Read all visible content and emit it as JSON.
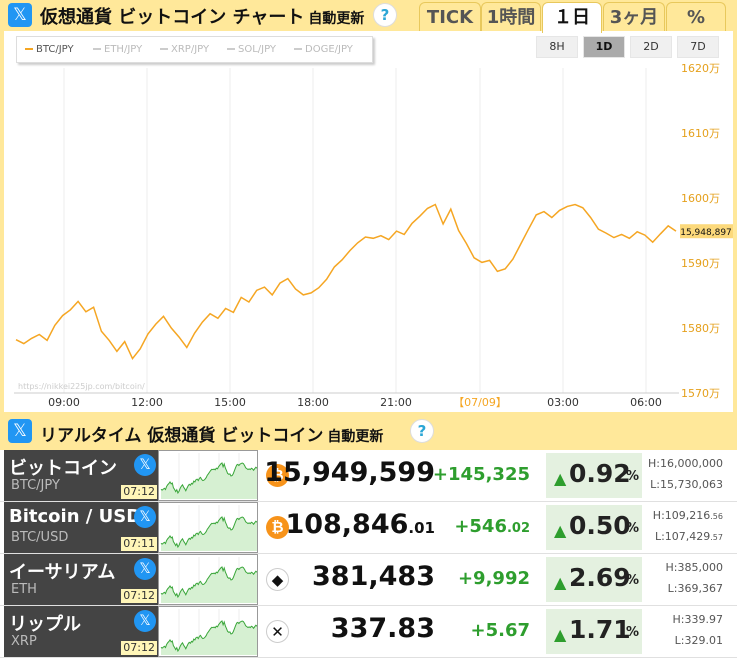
{
  "header": {
    "title": "仮想通貨 ビットコイン チャート",
    "subtitle": "自動更新",
    "help": "?",
    "x_glyph": "𝕏",
    "tabs": [
      {
        "label": "TICK",
        "active": false
      },
      {
        "label": "1時間",
        "active": false
      },
      {
        "label": "１日",
        "active": true
      },
      {
        "label": "3ヶ月",
        "active": false
      },
      {
        "label": "%",
        "active": false
      }
    ]
  },
  "chart": {
    "legend": [
      {
        "label": "BTC/JPY",
        "active": true
      },
      {
        "label": "ETH/JPY",
        "active": false
      },
      {
        "label": "XRP/JPY",
        "active": false
      },
      {
        "label": "SOL/JPY",
        "active": false
      },
      {
        "label": "DOGE/JPY",
        "active": false
      }
    ],
    "ranges": [
      {
        "label": "8H",
        "active": false
      },
      {
        "label": "1D",
        "active": true
      },
      {
        "label": "2D",
        "active": false
      },
      {
        "label": "7D",
        "active": false
      }
    ],
    "watermark": "https://nikkei225jp.com/bitcoin/",
    "current_label": "15,948,897",
    "line_color": "#f5a623"
  },
  "chart_data": {
    "type": "line",
    "series": [
      {
        "name": "BTC/JPY",
        "values": [
          1578.2,
          1577.6,
          1578.4,
          1579.0,
          1578.1,
          1580.4,
          1581.9,
          1582.8,
          1584.1,
          1582.5,
          1583.2,
          1579.5,
          1578.1,
          1576.4,
          1577.9,
          1575.3,
          1576.8,
          1579.1,
          1580.6,
          1581.8,
          1580.0,
          1578.6,
          1577.0,
          1579.2,
          1580.9,
          1582.2,
          1581.5,
          1583.0,
          1582.4,
          1584.7,
          1584.0,
          1585.8,
          1586.3,
          1585.1,
          1586.9,
          1587.6,
          1586.0,
          1585.1,
          1585.4,
          1586.2,
          1587.5,
          1589.4,
          1590.5,
          1591.9,
          1593.1,
          1594.0,
          1593.8,
          1594.2,
          1593.6,
          1594.9,
          1594.4,
          1596.1,
          1597.2,
          1598.4,
          1599.0,
          1596.0,
          1598.3,
          1595.0,
          1593.0,
          1590.8,
          1590.1,
          1590.4,
          1588.7,
          1589.1,
          1590.6,
          1592.9,
          1595.2,
          1597.4,
          1597.9,
          1597.0,
          1598.1,
          1598.7,
          1599.0,
          1598.5,
          1597.0,
          1595.2,
          1594.6,
          1593.9,
          1594.4,
          1593.8,
          1594.8,
          1594.3,
          1593.2,
          1594.5,
          1595.7,
          1594.9
        ]
      }
    ],
    "x_ticks": [
      "09:00",
      "12:00",
      "15:00",
      "18:00",
      "21:00",
      "【07/09】",
      "03:00",
      "06:00"
    ],
    "y_ticks": [
      "1620万",
      "1610万",
      "1600万",
      "1590万",
      "1580万",
      "1570万"
    ],
    "ylim": [
      1570,
      1620
    ],
    "last_value": 15948897,
    "grid": true
  },
  "section": {
    "title": "リアルタイム 仮想通貨 ビットコイン",
    "subtitle": "自動更新",
    "help": "?"
  },
  "tickers": [
    {
      "name": "ビットコイン",
      "symbol": "BTC/JPY",
      "time": "07:12",
      "coin_glyph": "₿",
      "coin_color": "#f7931a",
      "price": "15,949,599",
      "price_dec": "",
      "change": "+145,325",
      "change_dec": "",
      "pct": "0.92",
      "pct_unit": "%",
      "high": "H:16,000,000",
      "high_dec": "",
      "low": "L:15,730,063",
      "low_dec": ""
    },
    {
      "name": "Bitcoin / USD",
      "symbol": "BTC/USD",
      "time": "07:11",
      "coin_glyph": "₿",
      "coin_color": "#f7931a",
      "price": "108,846",
      "price_dec": ".01",
      "change": "+546",
      "change_dec": ".02",
      "pct": "0.50",
      "pct_unit": "%",
      "high": "H:109,216",
      "high_dec": ".56",
      "low": "L:107,429",
      "low_dec": ".57"
    },
    {
      "name": "イーサリアム",
      "symbol": "ETH",
      "time": "07:12",
      "coin_glyph": "◆",
      "coin_color": "#ffffff",
      "price": "381,483",
      "price_dec": "",
      "change": "+9,992",
      "change_dec": "",
      "pct": "2.69",
      "pct_unit": "%",
      "high": "H:385,000",
      "high_dec": "",
      "low": "L:369,367",
      "low_dec": ""
    },
    {
      "name": "リップル",
      "symbol": "XRP",
      "time": "07:12",
      "coin_glyph": "✕",
      "coin_color": "#ffffff",
      "price": "337.83",
      "price_dec": "",
      "change": "+5.67",
      "change_dec": "",
      "pct": "1.71",
      "pct_unit": "%",
      "high": "H:339.97",
      "high_dec": "",
      "low": "L:329.01",
      "low_dec": ""
    }
  ]
}
